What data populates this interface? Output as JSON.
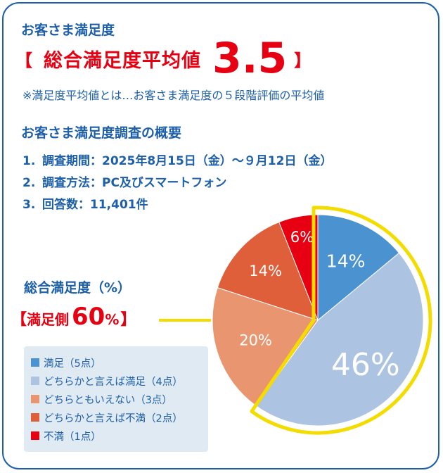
{
  "header": {
    "title": "お客さま満足度",
    "average": {
      "bracket_open": "【",
      "label": "総合満足度平均値",
      "value": "3.5",
      "bracket_close": "】"
    },
    "note": "※満足度平均値とは…お客さま満足度の５段階評価の平均値"
  },
  "survey": {
    "title": "お客さま満足度調査の概要",
    "items": [
      {
        "num": "1.",
        "text": "調査期間：2025年8月15日（金）～９月12日（金）"
      },
      {
        "num": "2.",
        "text": "調査方法：PC及びスマートフォン"
      },
      {
        "num": "3.",
        "text": "回答数：11,401件"
      }
    ]
  },
  "chart_title": "総合満足度（%）",
  "satisfied_callout": {
    "bracket_open": "【",
    "label": "満足側",
    "value": "60",
    "unit": "%",
    "bracket_close": "】",
    "highlight_color": "#f3dc00"
  },
  "chart_data": {
    "type": "pie",
    "title": "総合満足度（%）",
    "start": "12 o'clock, clockwise",
    "slices": [
      {
        "name": "満足（5点）",
        "value": 14,
        "label": "14%",
        "color": "#4a93d0"
      },
      {
        "name": "どちらかと言えば満足（4点）",
        "value": 46,
        "label": "46%",
        "color": "#adc3e2"
      },
      {
        "name": "どちらともいえない（3点）",
        "value": 20,
        "label": "20%",
        "color": "#e99670"
      },
      {
        "name": "どちらかと言えば不満（2点）",
        "value": 14,
        "label": "14%",
        "color": "#e05f3b"
      },
      {
        "name": "不満（1点）",
        "value": 6,
        "label": "6%",
        "color": "#e60012"
      }
    ],
    "legend_position": "bottom-left"
  }
}
